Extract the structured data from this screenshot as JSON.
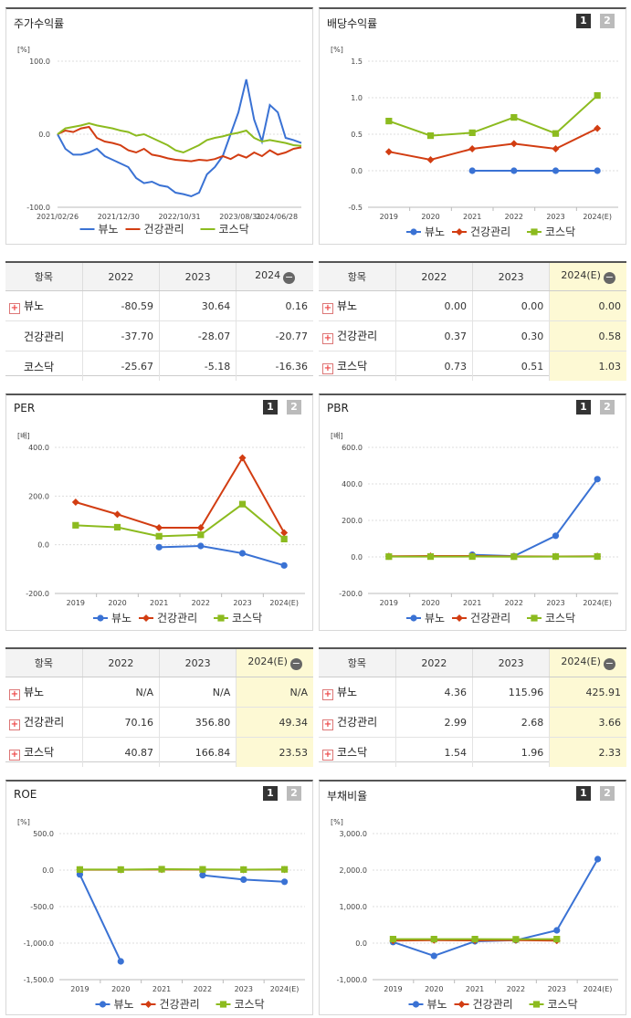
{
  "colors": {
    "nuno": "#3a72d4",
    "health": "#d23d12",
    "kosdaq": "#8cbb1f"
  },
  "legend": [
    "뷰노",
    "건강관리",
    "코스닥"
  ],
  "pager": [
    "1",
    "2"
  ],
  "charts": {
    "stock": {
      "title": "주가수익률",
      "unit": "[%]",
      "type": "line",
      "yticks": [
        "100.0",
        "0.0",
        "-100.0"
      ],
      "ylim": [
        -100,
        100
      ],
      "xlabels": [
        "2021/02/26",
        "2021/12/30",
        "2022/10/31",
        "2023/08/31",
        "2024/06/28"
      ],
      "series": [
        {
          "name": "뷰노",
          "values": [
            0,
            -20,
            -28,
            -28,
            -25,
            -20,
            -30,
            -35,
            -40,
            -45,
            -60,
            -67,
            -65,
            -70,
            -72,
            -80,
            -82,
            -85,
            -80,
            -55,
            -45,
            -30,
            0,
            30,
            75,
            20,
            -10,
            40,
            30,
            -5,
            -8,
            -12
          ]
        },
        {
          "name": "건강관리",
          "values": [
            0,
            5,
            3,
            8,
            10,
            -5,
            -10,
            -12,
            -15,
            -22,
            -25,
            -20,
            -28,
            -30,
            -33,
            -35,
            -36,
            -37,
            -35,
            -36,
            -34,
            -30,
            -34,
            -28,
            -32,
            -25,
            -30,
            -22,
            -28,
            -25,
            -20,
            -18
          ]
        },
        {
          "name": "코스닥",
          "values": [
            0,
            8,
            10,
            12,
            15,
            12,
            10,
            8,
            5,
            3,
            -2,
            0,
            -5,
            -10,
            -15,
            -22,
            -25,
            -20,
            -15,
            -8,
            -5,
            -3,
            0,
            2,
            5,
            -5,
            -10,
            -8,
            -10,
            -12,
            -15,
            -16
          ]
        }
      ]
    },
    "dividend": {
      "title": "배당수익률",
      "unit": "[%]",
      "type": "line",
      "yticks": [
        "1.5",
        "1.0",
        "0.5",
        "0.0",
        "-0.5"
      ],
      "ylim": [
        -0.5,
        1.5
      ],
      "categories": [
        "2019",
        "2020",
        "2021",
        "2022",
        "2023",
        "2024(E)"
      ],
      "series": [
        {
          "name": "뷰노",
          "values": [
            null,
            null,
            0.0,
            0.0,
            0.0,
            0.0
          ]
        },
        {
          "name": "건강관리",
          "values": [
            0.26,
            0.15,
            0.3,
            0.37,
            0.3,
            0.58
          ]
        },
        {
          "name": "코스닥",
          "values": [
            0.68,
            0.48,
            0.52,
            0.73,
            0.51,
            1.03
          ]
        }
      ]
    },
    "per": {
      "title": "PER",
      "unit": "[배]",
      "type": "line",
      "yticks": [
        "400.0",
        "200.0",
        "0.0",
        "-200.0"
      ],
      "ylim": [
        -200,
        400
      ],
      "categories": [
        "2019",
        "2020",
        "2021",
        "2022",
        "2023",
        "2024(E)"
      ],
      "series": [
        {
          "name": "뷰노",
          "values": [
            null,
            null,
            -10,
            -5,
            -35,
            -85
          ]
        },
        {
          "name": "건강관리",
          "values": [
            175,
            125,
            70,
            70.16,
            356.8,
            49.34
          ]
        },
        {
          "name": "코스닥",
          "values": [
            80,
            72,
            35,
            40.87,
            166.84,
            23.53
          ]
        }
      ]
    },
    "pbr": {
      "title": "PBR",
      "unit": "[배]",
      "type": "line",
      "yticks": [
        "600.0",
        "400.0",
        "200.0",
        "0.0",
        "-200.0"
      ],
      "ylim": [
        -200,
        600
      ],
      "categories": [
        "2019",
        "2020",
        "2021",
        "2022",
        "2023",
        "2024(E)"
      ],
      "series": [
        {
          "name": "뷰노",
          "values": [
            null,
            null,
            12,
            4.36,
            115.96,
            425.91
          ]
        },
        {
          "name": "건강관리",
          "values": [
            4,
            5,
            5,
            2.99,
            2.68,
            3.66
          ]
        },
        {
          "name": "코스닥",
          "values": [
            1.7,
            2.0,
            2.2,
            1.54,
            1.96,
            2.33
          ]
        }
      ]
    },
    "roe": {
      "title": "ROE",
      "unit": "[%]",
      "type": "line",
      "yticks": [
        "500.0",
        "0.0",
        "-500.0",
        "-1,000.0",
        "-1,500.0"
      ],
      "ylim": [
        -1500,
        500
      ],
      "categories": [
        "2019",
        "2020",
        "2021",
        "2022",
        "2023",
        "2024(E)"
      ],
      "series": [
        {
          "name": "뷰노",
          "values": [
            -60,
            -1250,
            null,
            -70,
            -130,
            -160
          ]
        },
        {
          "name": "건강관리",
          "values": [
            5,
            5,
            8,
            6,
            4,
            8
          ]
        },
        {
          "name": "코스닥",
          "values": [
            8,
            7,
            12,
            10,
            7,
            10
          ]
        }
      ]
    },
    "debt": {
      "title": "부채비율",
      "unit": "[%]",
      "type": "line",
      "yticks": [
        "3,000.0",
        "2,000.0",
        "1,000.0",
        "0.0",
        "-1,000.0"
      ],
      "ylim": [
        -1000,
        3000
      ],
      "categories": [
        "2019",
        "2020",
        "2021",
        "2022",
        "2023",
        "2024(E)"
      ],
      "series": [
        {
          "name": "뷰노",
          "values": [
            30,
            -350,
            50,
            80,
            350,
            2300
          ]
        },
        {
          "name": "건강관리",
          "values": [
            70,
            80,
            75,
            80,
            70,
            null
          ]
        },
        {
          "name": "코스닥",
          "values": [
            110,
            110,
            110,
            105,
            110,
            null
          ]
        }
      ]
    }
  },
  "tables": {
    "stock": {
      "header": [
        "항목",
        "2022",
        "2023",
        "2024"
      ],
      "rows": [
        {
          "label": "뷰노",
          "plus": true,
          "values": [
            "-80.59",
            "30.64",
            "0.16"
          ]
        },
        {
          "label": "건강관리",
          "plus": false,
          "values": [
            "-37.70",
            "-28.07",
            "-20.77"
          ]
        },
        {
          "label": "코스닥",
          "plus": false,
          "values": [
            "-25.67",
            "-5.18",
            "-16.36"
          ]
        }
      ]
    },
    "dividend": {
      "header": [
        "항목",
        "2022",
        "2023",
        "2024(E)"
      ],
      "rows": [
        {
          "label": "뷰노",
          "plus": true,
          "values": [
            "0.00",
            "0.00",
            "0.00"
          ]
        },
        {
          "label": "건강관리",
          "plus": true,
          "values": [
            "0.37",
            "0.30",
            "0.58"
          ]
        },
        {
          "label": "코스닥",
          "plus": true,
          "values": [
            "0.73",
            "0.51",
            "1.03"
          ]
        }
      ]
    },
    "per": {
      "header": [
        "항목",
        "2022",
        "2023",
        "2024(E)"
      ],
      "rows": [
        {
          "label": "뷰노",
          "plus": true,
          "values": [
            "N/A",
            "N/A",
            "N/A"
          ]
        },
        {
          "label": "건강관리",
          "plus": true,
          "values": [
            "70.16",
            "356.80",
            "49.34"
          ]
        },
        {
          "label": "코스닥",
          "plus": true,
          "values": [
            "40.87",
            "166.84",
            "23.53"
          ]
        }
      ]
    },
    "pbr": {
      "header": [
        "항목",
        "2022",
        "2023",
        "2024(E)"
      ],
      "rows": [
        {
          "label": "뷰노",
          "plus": true,
          "values": [
            "4.36",
            "115.96",
            "425.91"
          ]
        },
        {
          "label": "건강관리",
          "plus": true,
          "values": [
            "2.99",
            "2.68",
            "3.66"
          ]
        },
        {
          "label": "코스닥",
          "plus": true,
          "values": [
            "1.54",
            "1.96",
            "2.33"
          ]
        }
      ]
    }
  }
}
